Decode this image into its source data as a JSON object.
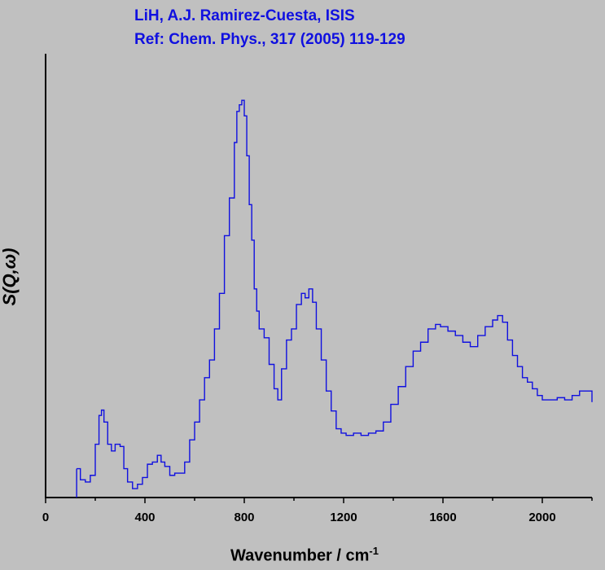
{
  "chart_data": {
    "type": "line",
    "title_lines": [
      "LiH, A.J. Ramirez-Cuesta, ISIS",
      "Ref: Chem. Phys., 317 (2005) 119-129"
    ],
    "xlabel": "Wavenumber / cm",
    "xlabel_superscript": "-1",
    "ylabel": "S(Q,ω)",
    "xlim": [
      0,
      2200
    ],
    "ylim": [
      0,
      100
    ],
    "xticks": [
      0,
      400,
      800,
      1200,
      1600,
      2000
    ],
    "xtick_labels": [
      "0",
      "400",
      "800",
      "1200",
      "1600",
      "2000"
    ],
    "y_tick_labels_shown": false,
    "grid": false,
    "line_color": "#1010e0",
    "line_style": "step",
    "series": [
      {
        "x": [
          125,
          140,
          160,
          180,
          200,
          215,
          225,
          235,
          250,
          265,
          280,
          300,
          315,
          330,
          350,
          370,
          390,
          410,
          430,
          450,
          465,
          480,
          500,
          520,
          540,
          560,
          580,
          600,
          620,
          640,
          660,
          680,
          700,
          720,
          740,
          760,
          770,
          780,
          790,
          800,
          810,
          820,
          830,
          840,
          850,
          860,
          880,
          900,
          920,
          935,
          950,
          970,
          990,
          1010,
          1030,
          1045,
          1060,
          1075,
          1090,
          1110,
          1130,
          1150,
          1170,
          1190,
          1210,
          1240,
          1270,
          1300,
          1330,
          1360,
          1390,
          1420,
          1450,
          1480,
          1510,
          1540,
          1570,
          1590,
          1620,
          1650,
          1680,
          1710,
          1740,
          1770,
          1800,
          1820,
          1840,
          1860,
          1880,
          1900,
          1920,
          1940,
          1960,
          1980,
          2000,
          2030,
          2060,
          2090,
          2120,
          2150,
          2180,
          2200
        ],
        "y": [
          6.5,
          4.0,
          3.5,
          5.0,
          12.0,
          18.5,
          19.7,
          17.0,
          12.0,
          10.5,
          12.0,
          11.5,
          6.5,
          3.5,
          2.0,
          3.0,
          4.5,
          7.5,
          8.0,
          9.5,
          8.0,
          7.0,
          5.0,
          5.5,
          5.5,
          8.0,
          13.0,
          17.0,
          22.0,
          27.0,
          31.0,
          38.0,
          46.0,
          59.0,
          67.5,
          80.0,
          87.0,
          88.5,
          89.5,
          86.0,
          77.0,
          66.0,
          58.0,
          47.0,
          42.0,
          38.0,
          36.0,
          30.0,
          24.5,
          22.0,
          29.0,
          35.5,
          38.0,
          43.5,
          46.0,
          45.0,
          47.0,
          44.0,
          38.0,
          31.0,
          24.0,
          19.5,
          15.5,
          14.5,
          14.0,
          14.5,
          14.0,
          14.5,
          15.0,
          17.0,
          21.0,
          25.0,
          29.5,
          33.0,
          35.0,
          38.0,
          39.0,
          38.5,
          37.5,
          36.5,
          35.0,
          34.0,
          36.5,
          38.5,
          40.0,
          41.0,
          39.5,
          35.5,
          32.0,
          29.5,
          27.0,
          26.0,
          24.5,
          23.0,
          22.0,
          22.0,
          22.5,
          22.0,
          23.0,
          24.0,
          24.0,
          23.5
        ]
      }
    ]
  }
}
